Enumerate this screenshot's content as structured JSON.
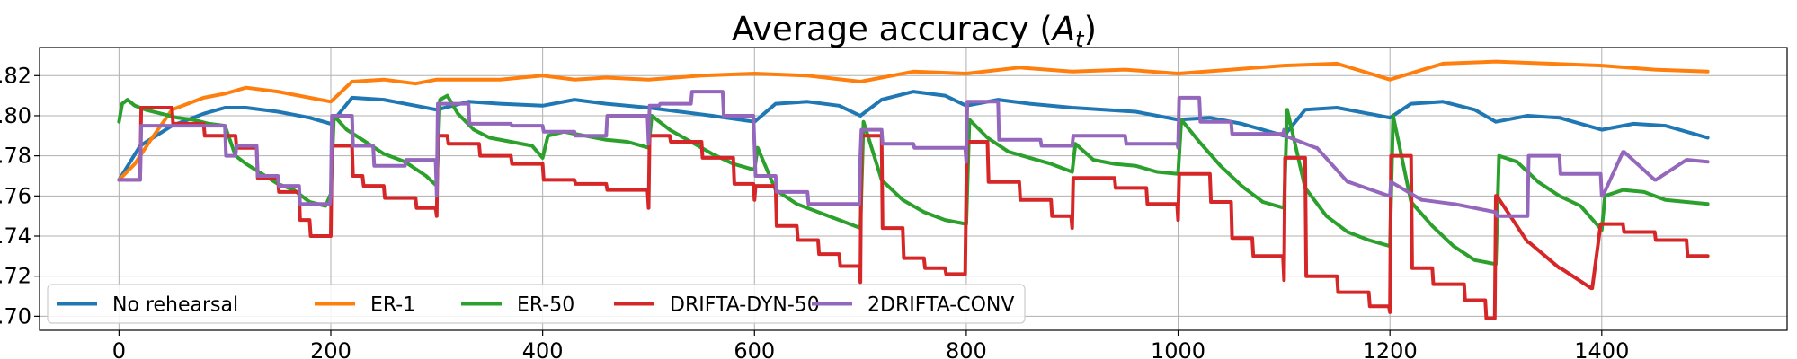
{
  "chart_data": {
    "type": "line",
    "title": "Average accuracy (",
    "title_var": "A",
    "title_sub": "t",
    "title_end": ")",
    "xlabel": "",
    "ylabel": "",
    "xlim": [
      -75,
      1575
    ],
    "ylim": [
      0.693,
      0.834
    ],
    "xticks": [
      0,
      200,
      400,
      600,
      800,
      1000,
      1200,
      1400
    ],
    "xtick_labels": [
      "0",
      "200",
      "400",
      "600",
      "800",
      "1000",
      "1200",
      "1400"
    ],
    "yticks": [
      0.7,
      0.72,
      0.74,
      0.76,
      0.78,
      0.8,
      0.82
    ],
    "ytick_labels": [
      ".70",
      ".72",
      ".74",
      ".76",
      ".78",
      ".80",
      ".82"
    ],
    "grid": true,
    "legend_position": "lower-left",
    "series": [
      {
        "name": "No rehearsal",
        "color": "#1f77b4",
        "x": [
          0,
          20,
          50,
          80,
          100,
          120,
          150,
          180,
          200,
          220,
          250,
          280,
          300,
          330,
          360,
          400,
          430,
          460,
          500,
          530,
          560,
          600,
          620,
          650,
          680,
          700,
          720,
          750,
          780,
          800,
          830,
          860,
          900,
          930,
          960,
          1000,
          1030,
          1060,
          1100,
          1120,
          1150,
          1180,
          1200,
          1220,
          1250,
          1280,
          1300,
          1330,
          1360,
          1400,
          1430,
          1460,
          1500
        ],
        "y": [
          0.768,
          0.785,
          0.795,
          0.801,
          0.804,
          0.804,
          0.802,
          0.799,
          0.796,
          0.809,
          0.808,
          0.805,
          0.803,
          0.807,
          0.806,
          0.805,
          0.808,
          0.806,
          0.804,
          0.802,
          0.8,
          0.797,
          0.806,
          0.807,
          0.805,
          0.8,
          0.808,
          0.812,
          0.81,
          0.805,
          0.808,
          0.806,
          0.804,
          0.803,
          0.802,
          0.798,
          0.799,
          0.796,
          0.79,
          0.803,
          0.804,
          0.801,
          0.799,
          0.806,
          0.807,
          0.803,
          0.797,
          0.8,
          0.799,
          0.793,
          0.796,
          0.795,
          0.789
        ]
      },
      {
        "name": "ER-1",
        "color": "#ff7f0e",
        "x": [
          0,
          15,
          30,
          50,
          80,
          100,
          120,
          150,
          180,
          200,
          220,
          250,
          280,
          300,
          330,
          360,
          400,
          430,
          460,
          500,
          550,
          600,
          650,
          700,
          750,
          800,
          850,
          900,
          950,
          1000,
          1050,
          1100,
          1150,
          1200,
          1250,
          1300,
          1350,
          1400,
          1450,
          1500
        ],
        "y": [
          0.768,
          0.776,
          0.788,
          0.803,
          0.809,
          0.811,
          0.814,
          0.812,
          0.809,
          0.807,
          0.817,
          0.818,
          0.816,
          0.818,
          0.818,
          0.818,
          0.82,
          0.818,
          0.819,
          0.818,
          0.82,
          0.821,
          0.82,
          0.817,
          0.822,
          0.821,
          0.824,
          0.822,
          0.823,
          0.821,
          0.823,
          0.825,
          0.826,
          0.818,
          0.826,
          0.827,
          0.826,
          0.825,
          0.823,
          0.822
        ]
      },
      {
        "name": "ER-50",
        "color": "#2ca02c",
        "x": [
          0,
          3,
          8,
          15,
          25,
          40,
          55,
          70,
          85,
          100,
          110,
          120,
          135,
          150,
          165,
          180,
          195,
          200,
          203,
          215,
          230,
          250,
          270,
          290,
          300,
          303,
          310,
          320,
          335,
          350,
          370,
          390,
          400,
          405,
          420,
          440,
          460,
          480,
          500,
          503,
          520,
          540,
          560,
          580,
          600,
          603,
          620,
          640,
          660,
          680,
          700,
          703,
          720,
          740,
          760,
          780,
          800,
          803,
          820,
          840,
          860,
          880,
          900,
          903,
          920,
          940,
          960,
          980,
          1000,
          1003,
          1020,
          1040,
          1060,
          1080,
          1100,
          1103,
          1120,
          1140,
          1160,
          1180,
          1200,
          1203,
          1220,
          1240,
          1260,
          1280,
          1300,
          1303,
          1320,
          1340,
          1360,
          1380,
          1400,
          1403,
          1420,
          1440,
          1460,
          1480,
          1500
        ],
        "y": [
          0.797,
          0.806,
          0.808,
          0.805,
          0.803,
          0.801,
          0.799,
          0.798,
          0.796,
          0.795,
          0.78,
          0.776,
          0.771,
          0.766,
          0.763,
          0.757,
          0.755,
          0.761,
          0.8,
          0.793,
          0.788,
          0.781,
          0.777,
          0.77,
          0.765,
          0.808,
          0.81,
          0.801,
          0.793,
          0.789,
          0.787,
          0.785,
          0.779,
          0.79,
          0.792,
          0.79,
          0.788,
          0.787,
          0.784,
          0.8,
          0.793,
          0.787,
          0.781,
          0.776,
          0.773,
          0.784,
          0.763,
          0.756,
          0.752,
          0.748,
          0.744,
          0.797,
          0.768,
          0.758,
          0.752,
          0.748,
          0.746,
          0.798,
          0.789,
          0.782,
          0.779,
          0.776,
          0.772,
          0.786,
          0.778,
          0.776,
          0.775,
          0.772,
          0.771,
          0.798,
          0.787,
          0.775,
          0.765,
          0.757,
          0.754,
          0.803,
          0.764,
          0.75,
          0.742,
          0.738,
          0.735,
          0.8,
          0.757,
          0.745,
          0.735,
          0.728,
          0.726,
          0.78,
          0.777,
          0.767,
          0.76,
          0.755,
          0.743,
          0.76,
          0.763,
          0.762,
          0.758,
          0.757,
          0.756
        ]
      },
      {
        "name": "DRIFTA-DYN-50",
        "color": "#d62728",
        "x": [
          0,
          20,
          21,
          50,
          51,
          80,
          81,
          110,
          111,
          130,
          131,
          150,
          151,
          170,
          171,
          180,
          181,
          200,
          201,
          220,
          221,
          230,
          231,
          250,
          251,
          280,
          281,
          299,
          300,
          301,
          310,
          311,
          340,
          341,
          370,
          371,
          400,
          401,
          430,
          431,
          460,
          461,
          499,
          500,
          501,
          520,
          521,
          550,
          551,
          580,
          581,
          599,
          600,
          601,
          620,
          621,
          640,
          641,
          660,
          661,
          680,
          681,
          699,
          700,
          701,
          720,
          721,
          740,
          741,
          760,
          761,
          780,
          781,
          799,
          800,
          801,
          820,
          821,
          850,
          851,
          880,
          881,
          899,
          900,
          901,
          940,
          941,
          970,
          971,
          999,
          1000,
          1001,
          1030,
          1031,
          1050,
          1051,
          1070,
          1071,
          1099,
          1100,
          1101,
          1120,
          1121,
          1150,
          1151,
          1180,
          1181,
          1199,
          1200,
          1201,
          1220,
          1221,
          1240,
          1241,
          1270,
          1271,
          1290,
          1291,
          1299,
          1300,
          1301,
          1330,
          1331,
          1360,
          1361,
          1390,
          1391,
          1399,
          1400,
          1401,
          1420,
          1421,
          1450,
          1451,
          1480,
          1481,
          1500
        ],
        "y": [
          0.768,
          0.768,
          0.804,
          0.804,
          0.796,
          0.796,
          0.79,
          0.79,
          0.784,
          0.784,
          0.769,
          0.769,
          0.762,
          0.762,
          0.748,
          0.748,
          0.74,
          0.74,
          0.785,
          0.785,
          0.77,
          0.77,
          0.765,
          0.765,
          0.759,
          0.759,
          0.754,
          0.754,
          0.75,
          0.79,
          0.79,
          0.786,
          0.786,
          0.78,
          0.78,
          0.776,
          0.776,
          0.768,
          0.768,
          0.766,
          0.766,
          0.763,
          0.763,
          0.754,
          0.79,
          0.79,
          0.787,
          0.787,
          0.779,
          0.779,
          0.766,
          0.766,
          0.758,
          0.765,
          0.765,
          0.745,
          0.745,
          0.738,
          0.738,
          0.731,
          0.731,
          0.725,
          0.725,
          0.717,
          0.79,
          0.79,
          0.744,
          0.744,
          0.729,
          0.729,
          0.724,
          0.724,
          0.721,
          0.721,
          0.765,
          0.787,
          0.787,
          0.767,
          0.767,
          0.758,
          0.758,
          0.75,
          0.75,
          0.744,
          0.769,
          0.769,
          0.764,
          0.764,
          0.756,
          0.756,
          0.748,
          0.771,
          0.771,
          0.757,
          0.757,
          0.739,
          0.739,
          0.73,
          0.73,
          0.718,
          0.779,
          0.779,
          0.72,
          0.72,
          0.712,
          0.712,
          0.705,
          0.705,
          0.702,
          0.78,
          0.78,
          0.724,
          0.724,
          0.716,
          0.716,
          0.708,
          0.708,
          0.699,
          0.699,
          0.76,
          0.76,
          0.737,
          0.737,
          0.724,
          0.724,
          0.714,
          0.714,
          0.746,
          0.746,
          0.746,
          0.746,
          0.742,
          0.742,
          0.738,
          0.738,
          0.73,
          0.73
        ]
      },
      {
        "name": "2DRIFTA-CONV",
        "color": "#9467bd",
        "x": [
          0,
          20,
          21,
          50,
          51,
          100,
          101,
          110,
          111,
          130,
          131,
          150,
          151,
          170,
          171,
          199,
          200,
          201,
          220,
          221,
          240,
          241,
          270,
          271,
          299,
          300,
          301,
          330,
          331,
          370,
          371,
          400,
          401,
          430,
          431,
          460,
          461,
          499,
          500,
          501,
          510,
          511,
          540,
          541,
          570,
          571,
          599,
          600,
          601,
          620,
          621,
          650,
          651,
          699,
          700,
          701,
          720,
          721,
          750,
          751,
          799,
          800,
          801,
          830,
          831,
          870,
          871,
          900,
          901,
          950,
          951,
          999,
          1000,
          1001,
          1020,
          1021,
          1050,
          1051,
          1099,
          1100,
          1101,
          1130,
          1131,
          1160,
          1161,
          1199,
          1200,
          1201,
          1230,
          1231,
          1260,
          1261,
          1299,
          1300,
          1301,
          1330,
          1331,
          1360,
          1361,
          1399,
          1400,
          1401,
          1420,
          1421,
          1450,
          1451,
          1480,
          1481,
          1500
        ],
        "y": [
          0.768,
          0.768,
          0.795,
          0.795,
          0.795,
          0.795,
          0.78,
          0.78,
          0.785,
          0.785,
          0.77,
          0.77,
          0.765,
          0.765,
          0.756,
          0.756,
          0.76,
          0.8,
          0.8,
          0.785,
          0.785,
          0.775,
          0.775,
          0.778,
          0.778,
          0.76,
          0.806,
          0.806,
          0.796,
          0.796,
          0.795,
          0.795,
          0.792,
          0.792,
          0.79,
          0.79,
          0.8,
          0.8,
          0.786,
          0.805,
          0.805,
          0.806,
          0.806,
          0.812,
          0.812,
          0.8,
          0.8,
          0.785,
          0.77,
          0.77,
          0.762,
          0.762,
          0.756,
          0.756,
          0.78,
          0.793,
          0.793,
          0.786,
          0.786,
          0.784,
          0.784,
          0.777,
          0.807,
          0.807,
          0.788,
          0.788,
          0.785,
          0.785,
          0.79,
          0.79,
          0.786,
          0.786,
          0.784,
          0.809,
          0.809,
          0.797,
          0.797,
          0.791,
          0.791,
          0.793,
          0.79,
          0.784,
          0.784,
          0.767,
          0.767,
          0.76,
          0.76,
          0.767,
          0.758,
          0.758,
          0.756,
          0.756,
          0.752,
          0.752,
          0.75,
          0.75,
          0.78,
          0.78,
          0.771,
          0.771,
          0.76,
          0.76,
          0.782,
          0.782,
          0.768,
          0.768,
          0.778,
          0.778,
          0.777
        ]
      }
    ]
  }
}
